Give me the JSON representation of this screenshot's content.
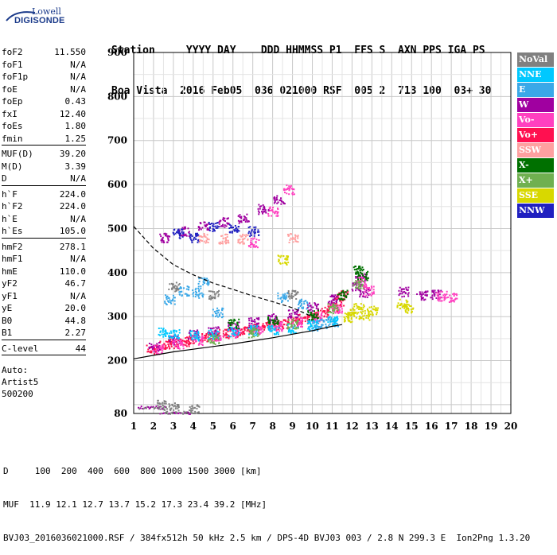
{
  "logo": {
    "top": "Lowell",
    "main": "DIGISONDE"
  },
  "header": {
    "line1": "Station     YYYY DAY    DDD HHMMSS P1  FFS S  AXN PPS IGA PS",
    "line2": "Boa Vista  2016 Feb05  036 021000 RSF  005 2  713 100  03+ 30"
  },
  "params": {
    "g1": [
      {
        "label": "foF2",
        "value": "11.550"
      },
      {
        "label": "foF1",
        "value": "N/A"
      },
      {
        "label": "foF1p",
        "value": "N/A"
      },
      {
        "label": "foE",
        "value": "N/A"
      },
      {
        "label": "foEp",
        "value": "0.43"
      },
      {
        "label": "fxI",
        "value": "12.40"
      },
      {
        "label": "foEs",
        "value": "1.80"
      },
      {
        "label": "fmin",
        "value": "1.25"
      }
    ],
    "g2": [
      {
        "label": "MUF(D)",
        "value": "39.20"
      },
      {
        "label": "M(D)",
        "value": "3.39"
      },
      {
        "label": "D",
        "value": "N/A"
      }
    ],
    "g3": [
      {
        "label": "h`F",
        "value": "224.0"
      },
      {
        "label": "h`F2",
        "value": "224.0"
      },
      {
        "label": "h`E",
        "value": "N/A"
      },
      {
        "label": "h`Es",
        "value": "105.0"
      }
    ],
    "g4": [
      {
        "label": "hmF2",
        "value": "278.1"
      },
      {
        "label": "hmF1",
        "value": "N/A"
      },
      {
        "label": "hmE",
        "value": "110.0"
      },
      {
        "label": "yF2",
        "value": "46.7"
      },
      {
        "label": "yF1",
        "value": "N/A"
      },
      {
        "label": "yE",
        "value": "20.0"
      },
      {
        "label": "B0",
        "value": "44.8"
      },
      {
        "label": "B1",
        "value": "2.27"
      }
    ],
    "g5": [
      {
        "label": "C-level",
        "value": "44"
      }
    ],
    "auto": [
      "Auto:",
      "Artist5",
      "500200"
    ]
  },
  "legend": [
    {
      "label": "NoVal",
      "bg": "#808080",
      "fg": "#ffffff"
    },
    {
      "label": "NNE",
      "bg": "#00c8ff",
      "fg": "#ffffff"
    },
    {
      "label": "E",
      "bg": "#3aa8e8",
      "fg": "#ffffff"
    },
    {
      "label": "W",
      "bg": "#a000a0",
      "fg": "#ffffff"
    },
    {
      "label": "Vo-",
      "bg": "#ff40c0",
      "fg": "#ffffff"
    },
    {
      "label": "Vo+",
      "bg": "#ff1050",
      "fg": "#ffffff"
    },
    {
      "label": "SSW",
      "bg": "#ffa0a0",
      "fg": "#ffffff"
    },
    {
      "label": "X-",
      "bg": "#007000",
      "fg": "#ffffff"
    },
    {
      "label": "X+",
      "bg": "#70b050",
      "fg": "#ffffff"
    },
    {
      "label": "SSE",
      "bg": "#d8d800",
      "fg": "#ffffff"
    },
    {
      "label": "NNW",
      "bg": "#2020c0",
      "fg": "#ffffff"
    }
  ],
  "footer": {
    "line1": "D     100  200  400  600  800 1000 1500 3000 [km]",
    "line2": "MUF  11.9 12.1 12.7 13.7 15.2 17.3 23.4 39.2 [MHz]",
    "line3": "BVJ03_2016036021000.RSF / 384fx512h 50 kHz 2.5 km / DPS-4D BVJ03 003 / 2.8 N 299.3 E  Ion2Png 1.3.20"
  },
  "chart_data": {
    "type": "scatter",
    "title": "",
    "xlabel": "",
    "ylabel": "",
    "xlim": [
      1,
      20
    ],
    "ylim": [
      80,
      900
    ],
    "xticks": [
      1,
      2,
      3,
      4,
      5,
      6,
      7,
      8,
      9,
      10,
      11,
      12,
      13,
      14,
      15,
      16,
      17,
      18,
      19,
      20
    ],
    "yticks": [
      80,
      200,
      300,
      400,
      500,
      600,
      700,
      800,
      900
    ],
    "grid": true,
    "legend_position": "right",
    "series": [
      {
        "name": "Vo+",
        "color": "#ff1050",
        "points": [
          [
            1.9,
            227
          ],
          [
            2.5,
            236
          ],
          [
            3,
            240
          ],
          [
            3.5,
            245
          ],
          [
            4,
            250
          ],
          [
            4.5,
            254
          ],
          [
            5,
            258
          ],
          [
            5.5,
            262
          ],
          [
            6,
            266
          ],
          [
            6.5,
            270
          ],
          [
            7,
            274
          ],
          [
            7.5,
            278
          ],
          [
            8,
            282
          ],
          [
            8.5,
            286
          ],
          [
            9,
            290
          ],
          [
            9.5,
            296
          ],
          [
            10,
            303
          ],
          [
            10.5,
            312
          ],
          [
            11,
            323
          ],
          [
            11.3,
            334
          ],
          [
            11.5,
            350
          ]
        ]
      },
      {
        "name": "W",
        "color": "#a000a0",
        "points": [
          [
            2,
            232
          ],
          [
            3,
            248
          ],
          [
            4,
            260
          ],
          [
            5,
            268
          ],
          [
            6,
            278
          ],
          [
            7,
            288
          ],
          [
            8,
            298
          ],
          [
            9,
            308
          ],
          [
            10,
            322
          ],
          [
            11,
            340
          ],
          [
            12.2,
            370
          ],
          [
            12.4,
            390
          ],
          [
            12.6,
            355
          ],
          [
            14.6,
            358
          ],
          [
            15.5,
            350
          ],
          [
            16.2,
            352
          ],
          [
            2.5,
            480
          ],
          [
            3.5,
            495
          ],
          [
            4.5,
            508
          ],
          [
            5.5,
            515
          ],
          [
            6.5,
            525
          ],
          [
            7.5,
            545
          ],
          [
            8.3,
            565
          ]
        ]
      },
      {
        "name": "Vo-",
        "color": "#ff40c0",
        "points": [
          [
            2.2,
            226
          ],
          [
            3.2,
            238
          ],
          [
            4.2,
            248
          ],
          [
            5.2,
            256
          ],
          [
            6.2,
            264
          ],
          [
            7.2,
            272
          ],
          [
            8.2,
            280
          ],
          [
            9.2,
            288
          ],
          [
            10.2,
            300
          ],
          [
            11.2,
            320
          ],
          [
            12.5,
            380
          ],
          [
            12.8,
            360
          ],
          [
            16.5,
            348
          ],
          [
            17,
            345
          ],
          [
            7,
            470
          ],
          [
            8,
            540
          ],
          [
            8.8,
            590
          ]
        ]
      },
      {
        "name": "E",
        "color": "#3aa8e8",
        "points": [
          [
            2.8,
            340
          ],
          [
            3.5,
            360
          ],
          [
            4.2,
            355
          ],
          [
            4.5,
            380
          ],
          [
            5.2,
            310
          ],
          [
            8.5,
            345
          ],
          [
            9.5,
            330
          ],
          [
            10,
            280
          ],
          [
            10.5,
            285
          ],
          [
            11,
            290
          ]
        ]
      },
      {
        "name": "NNE",
        "color": "#00c8ff",
        "points": [
          [
            2.5,
            265
          ],
          [
            3,
            262
          ],
          [
            4,
            258
          ],
          [
            5,
            262
          ],
          [
            6,
            266
          ],
          [
            7,
            270
          ],
          [
            8,
            272
          ],
          [
            9,
            275
          ],
          [
            10,
            282
          ],
          [
            11,
            292
          ]
        ]
      },
      {
        "name": "X-",
        "color": "#007000",
        "points": [
          [
            6,
            285
          ],
          [
            8,
            290
          ],
          [
            10,
            305
          ],
          [
            11.5,
            350
          ],
          [
            12.3,
            405
          ],
          [
            12.5,
            395
          ]
        ]
      },
      {
        "name": "X+",
        "color": "#70b050",
        "points": [
          [
            5,
            250
          ],
          [
            7,
            265
          ],
          [
            9,
            285
          ],
          [
            11,
            320
          ],
          [
            12.3,
            375
          ]
        ]
      },
      {
        "name": "SSE",
        "color": "#d8d800",
        "points": [
          [
            11.8,
            300
          ],
          [
            12,
            310
          ],
          [
            12.3,
            320
          ],
          [
            12.6,
            305
          ],
          [
            13,
            315
          ],
          [
            14.5,
            330
          ],
          [
            14.8,
            320
          ],
          [
            8.5,
            430
          ]
        ]
      },
      {
        "name": "NNW",
        "color": "#2020c0",
        "points": [
          [
            3.2,
            490
          ],
          [
            4,
            480
          ],
          [
            5,
            505
          ],
          [
            6,
            500
          ],
          [
            7,
            495
          ]
        ]
      },
      {
        "name": "SSW",
        "color": "#ffa0a0",
        "points": [
          [
            4.5,
            480
          ],
          [
            5.5,
            478
          ],
          [
            6.5,
            478
          ],
          [
            9,
            480
          ]
        ]
      },
      {
        "name": "NoVal",
        "color": "#808080",
        "points": [
          [
            2.4,
            100
          ],
          [
            3,
            95
          ],
          [
            4,
            92
          ],
          [
            3,
            370
          ],
          [
            5,
            350
          ],
          [
            9,
            350
          ]
        ]
      }
    ],
    "curves": [
      {
        "style": "dashed",
        "points": [
          [
            1,
            505
          ],
          [
            2,
            455
          ],
          [
            3,
            418
          ],
          [
            4,
            395
          ],
          [
            5,
            376
          ],
          [
            6,
            362
          ],
          [
            7,
            347
          ],
          [
            8,
            334
          ],
          [
            9,
            320
          ],
          [
            10,
            300
          ]
        ]
      },
      {
        "style": "solid",
        "points": [
          [
            1,
            204
          ],
          [
            2,
            212
          ],
          [
            3,
            220
          ],
          [
            4,
            226
          ],
          [
            5,
            232
          ],
          [
            6,
            238
          ],
          [
            7,
            245
          ],
          [
            8,
            252
          ],
          [
            9,
            260
          ],
          [
            10,
            268
          ],
          [
            11,
            278
          ],
          [
            11.5,
            282
          ]
        ]
      }
    ],
    "es_traces": [
      {
        "x0": 1.2,
        "x1": 2.6,
        "y": 95
      },
      {
        "x0": 2.3,
        "x1": 3.8,
        "y": 83
      }
    ]
  }
}
